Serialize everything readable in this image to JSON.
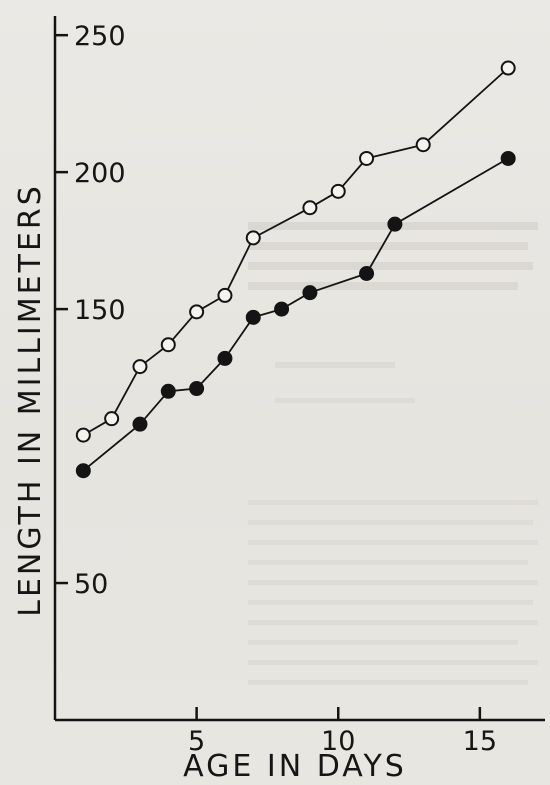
{
  "chart_data": {
    "type": "line",
    "title": "",
    "xlabel": "AGE IN DAYS",
    "ylabel": "LENGTH IN MILLIMETERS",
    "xlim": [
      0,
      17.3
    ],
    "ylim": [
      0,
      257
    ],
    "x_ticks": [
      5,
      10,
      15
    ],
    "y_ticks": [
      50,
      150,
      200,
      250
    ],
    "grid": false,
    "legend": "none",
    "series": [
      {
        "marker": "open-circle",
        "color": "#141414",
        "points": [
          [
            1,
            104
          ],
          [
            2,
            110
          ],
          [
            3,
            129
          ],
          [
            4,
            137
          ],
          [
            5,
            149
          ],
          [
            6,
            155
          ],
          [
            7,
            176
          ],
          [
            9,
            187
          ],
          [
            10,
            193
          ],
          [
            11,
            205
          ],
          [
            13,
            210
          ],
          [
            16,
            238
          ]
        ]
      },
      {
        "marker": "filled-circle",
        "color": "#141414",
        "points": [
          [
            1,
            91
          ],
          [
            3,
            108
          ],
          [
            4,
            120
          ],
          [
            5,
            121
          ],
          [
            6,
            132
          ],
          [
            7,
            147
          ],
          [
            8,
            150
          ],
          [
            9,
            156
          ],
          [
            11,
            163
          ],
          [
            12,
            181
          ],
          [
            16,
            205
          ]
        ]
      }
    ]
  }
}
